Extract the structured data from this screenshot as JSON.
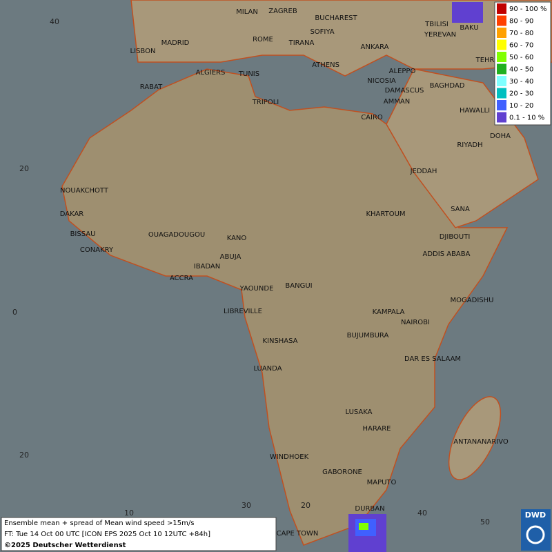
{
  "map": {
    "cities": [
      "MILAN",
      "ZAGREB",
      "BUCHAREST",
      "TBILISI",
      "BAKU",
      "MADRID",
      "ROME",
      "SOFIYA",
      "YEREVAN",
      "LISBON",
      "TIRANA",
      "ANKARA",
      "TEHRAN",
      "ATHENS",
      "ALGIERS",
      "TUNIS",
      "ALEPPO",
      "RABAT",
      "NICOSIA",
      "BAGHDAD",
      "DAMASCUS",
      "AMMAN",
      "TRIPOLI",
      "HAWALLI",
      "CAIRO",
      "DOHA",
      "RIYADH",
      "NOUAKCHOTT",
      "JEDDAH",
      "SANA",
      "DAKAR",
      "KHARTOUM",
      "BISSAU",
      "DJIBOUTI",
      "OUAGADOUGOU",
      "KANO",
      "CONAKRY",
      "ADDIS ABABA",
      "ABUJA",
      "IBADAN",
      "ACCRA",
      "YAOUNDE",
      "BANGUI",
      "MOGADISHU",
      "LIBREVILLE",
      "KAMPALA",
      "NAIROBI",
      "KINSHASA",
      "BUJUMBURA",
      "DAR ES SALAAM",
      "LUANDA",
      "LUSAKA",
      "HARARE",
      "ANTANANARIVO",
      "WINDHOEK",
      "GABORONE",
      "MAPUTO",
      "DURBAN",
      "CAPE TOWN"
    ],
    "latitude_labels": [
      40,
      20,
      0,
      20
    ],
    "longitude_labels": [
      10,
      30,
      20,
      40,
      50
    ],
    "legend": [
      {
        "label": "90 - 100 %",
        "color": "#c00000"
      },
      {
        "label": "80 - 90",
        "color": "#ff4000"
      },
      {
        "label": "70 - 80",
        "color": "#ffa000"
      },
      {
        "label": "60 - 70",
        "color": "#ffff00"
      },
      {
        "label": "50 - 60",
        "color": "#80ff00"
      },
      {
        "label": "40 - 50",
        "color": "#20b020"
      },
      {
        "label": "30 - 40",
        "color": "#80ffff"
      },
      {
        "label": "20 - 30",
        "color": "#00c0c0"
      },
      {
        "label": "10 - 20",
        "color": "#4060ff"
      },
      {
        "label": "0.1 - 10 %",
        "color": "#6040d0"
      }
    ],
    "caption": {
      "line1": "Ensemble mean + spread of Mean wind speed >15m/s",
      "line2": "FT: Tue 14 Oct 00 UTC [ICON EPS 2025 Oct 10 12UTC +84h]",
      "line3": "©2025 Deutscher Wetterdienst"
    },
    "logo": "DWD"
  }
}
